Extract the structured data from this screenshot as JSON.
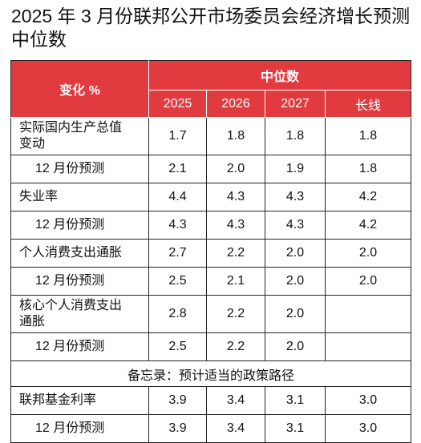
{
  "title": "2025 年 3 月份联邦公开市场委员会经济增长预测中位数",
  "table": {
    "row_header": "变化 %",
    "group_header": "中位数",
    "columns": [
      "2025",
      "2026",
      "2027",
      "长线"
    ],
    "rows": [
      {
        "label": "实际国内生产总值变动",
        "values": [
          "1.7",
          "1.8",
          "1.8",
          "1.8"
        ]
      },
      {
        "label": "12 月份预测",
        "values": [
          "2.1",
          "2.0",
          "1.9",
          "1.8"
        ]
      },
      {
        "label": "失业率",
        "values": [
          "4.4",
          "4.3",
          "4.3",
          "4.2"
        ]
      },
      {
        "label": "12 月份预测",
        "values": [
          "4.3",
          "4.3",
          "4.3",
          "4.2"
        ]
      },
      {
        "label": "个人消费支出通胀",
        "values": [
          "2.7",
          "2.2",
          "2.0",
          "2.0"
        ]
      },
      {
        "label": "12 月份预测",
        "values": [
          "2.5",
          "2.1",
          "2.0",
          "2.0"
        ]
      },
      {
        "label": "核心个人消费支出通胀",
        "values": [
          "2.8",
          "2.2",
          "2.0"
        ]
      },
      {
        "label": "12 月份预测",
        "values": [
          "2.5",
          "2.2",
          "2.0"
        ]
      }
    ],
    "memo": "备忘录：预计适当的政策路径",
    "memo_rows": [
      {
        "label": "联邦基金利率",
        "values": [
          "3.9",
          "3.4",
          "3.1",
          "3.0"
        ]
      },
      {
        "label": "12 月份预测",
        "values": [
          "3.9",
          "3.4",
          "3.1",
          "3.0"
        ]
      }
    ]
  }
}
